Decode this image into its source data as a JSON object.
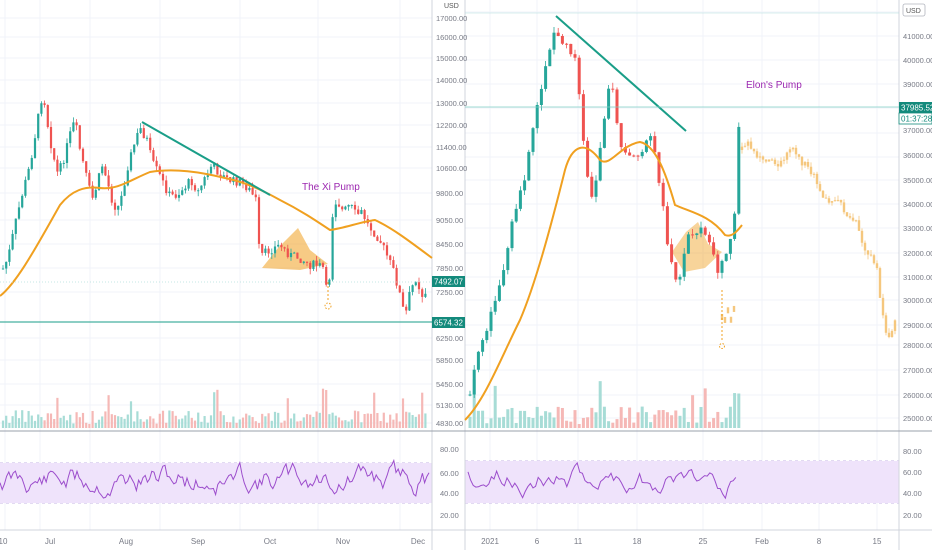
{
  "left_panel": {
    "currency": "USD",
    "price_ticks": [
      "17000.00",
      "16000.00",
      "15000.00",
      "14000.00",
      "13000.00",
      "12200.00",
      "11400.00",
      "10600.00",
      "9800.00",
      "9050.00",
      "8450.00",
      "7850.00",
      "7250.00",
      "6250.00",
      "5850.00",
      "5450.00",
      "5130.00",
      "4830.00"
    ],
    "current_price_label": "7492.07",
    "support_price_label": "6574.32",
    "annotation": "The Xi Pump",
    "date_ticks": [
      "10",
      "Jul",
      "Aug",
      "Sep",
      "Oct",
      "Nov",
      "Dec"
    ],
    "rsi_ticks": [
      "80.00",
      "60.00",
      "40.00",
      "20.00"
    ]
  },
  "right_panel": {
    "currency": "USD",
    "price_ticks": [
      "42000.00",
      "41000.00",
      "40000.00",
      "39000.00",
      "37000.00",
      "36000.00",
      "35000.00",
      "34000.00",
      "33000.00",
      "32000.00",
      "31000.00",
      "30000.00",
      "29000.00",
      "28000.00",
      "27000.00",
      "26000.00",
      "25000.00"
    ],
    "current_price_label": "37985.52",
    "countdown_label": "01:37:28",
    "annotation": "Elon's Pump",
    "date_ticks": [
      "2021",
      "6",
      "11",
      "18",
      "25",
      "Feb",
      "8",
      "15"
    ],
    "rsi_ticks": [
      "80.00",
      "60.00",
      "40.00",
      "20.00"
    ]
  },
  "colors": {
    "up": "#26a69a",
    "down": "#ef5350",
    "ma": "#f0a020",
    "trendline": "#1a9e88",
    "annotation": "#9c27b0",
    "rsi": "#9c4dcc",
    "rsi_band": "#efe3fb",
    "projection": "#f5c77e",
    "label_green": "#138a7c"
  }
}
